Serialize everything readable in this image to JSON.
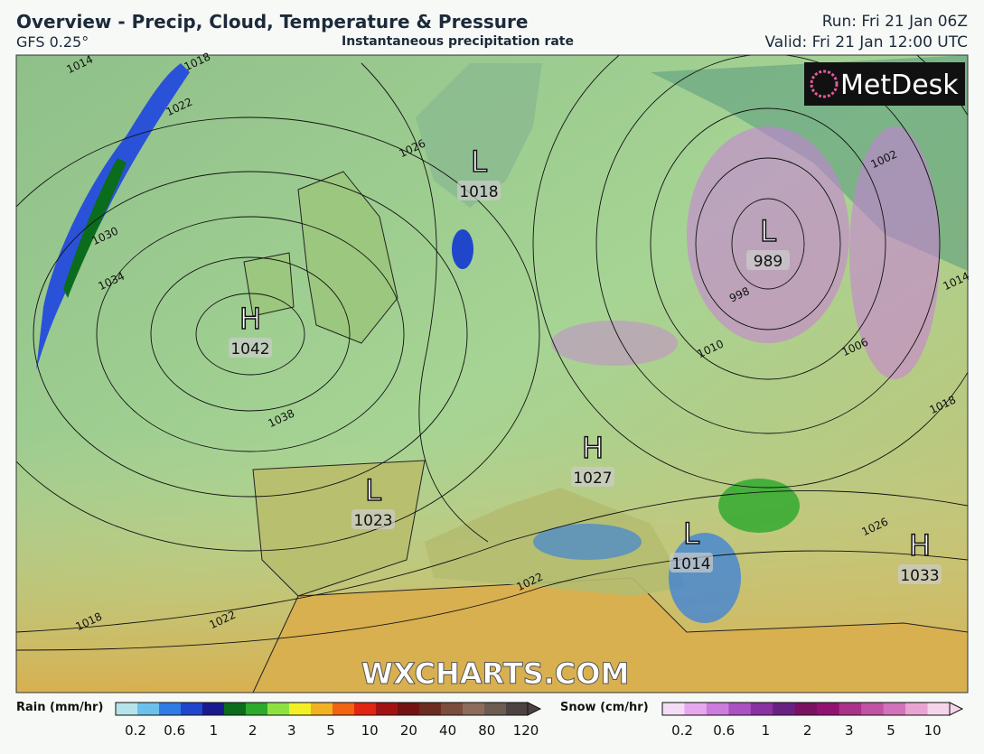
{
  "header": {
    "title": "Overview - Precip, Cloud, Temperature & Pressure",
    "model": "GFS 0.25°",
    "subtitle": "Instantaneous precipitation rate",
    "run": "Run: Fri 21 Jan 06Z",
    "valid": "Valid: Fri 21 Jan 12:00 UTC"
  },
  "logo": "MetDesk",
  "watermark": "WXCHARTS.COM",
  "pressure_centers": [
    {
      "symbol": "H",
      "value": "1042"
    },
    {
      "symbol": "L",
      "value": "1018"
    },
    {
      "symbol": "L",
      "value": "989"
    },
    {
      "symbol": "H",
      "value": "1027"
    },
    {
      "symbol": "L",
      "value": "1023"
    },
    {
      "symbol": "L",
      "value": "1014"
    },
    {
      "symbol": "H",
      "value": "1033"
    }
  ],
  "isobar_labels": [
    "1014",
    "1018",
    "1022",
    "1026",
    "1030",
    "1034",
    "1038",
    "1002",
    "1014",
    "1018",
    "1006",
    "1010",
    "998",
    "1022",
    "1022",
    "1018",
    "1026"
  ],
  "legend": {
    "rain": {
      "label": "Rain (mm/hr)",
      "ticks": [
        0.2,
        0.6,
        1,
        2,
        3,
        5,
        10,
        20,
        40,
        80,
        120
      ],
      "colors": [
        "#b4e4ea",
        "#6cc0ec",
        "#2f7ce4",
        "#2046cc",
        "#1a1a8e",
        "#0b6c1c",
        "#2caa2c",
        "#8de242",
        "#f2f022",
        "#f2b222",
        "#f26412",
        "#e22412",
        "#a31212",
        "#731212",
        "#6c2c22",
        "#7c4c3c",
        "#8c6c5c",
        "#6c5c52",
        "#4c4242"
      ]
    },
    "snow": {
      "label": "Snow (cm/hr)",
      "ticks": [
        0.2,
        0.6,
        1,
        2,
        3,
        5,
        10
      ],
      "colors": [
        "#f4dcf4",
        "#e6a8ec",
        "#cc7cdc",
        "#aa52c2",
        "#8a32a2",
        "#6a2282",
        "#7a1262",
        "#921272",
        "#aa3288",
        "#c252a2",
        "#d272ba",
        "#eaa4d2",
        "#f6d4ea"
      ]
    }
  }
}
